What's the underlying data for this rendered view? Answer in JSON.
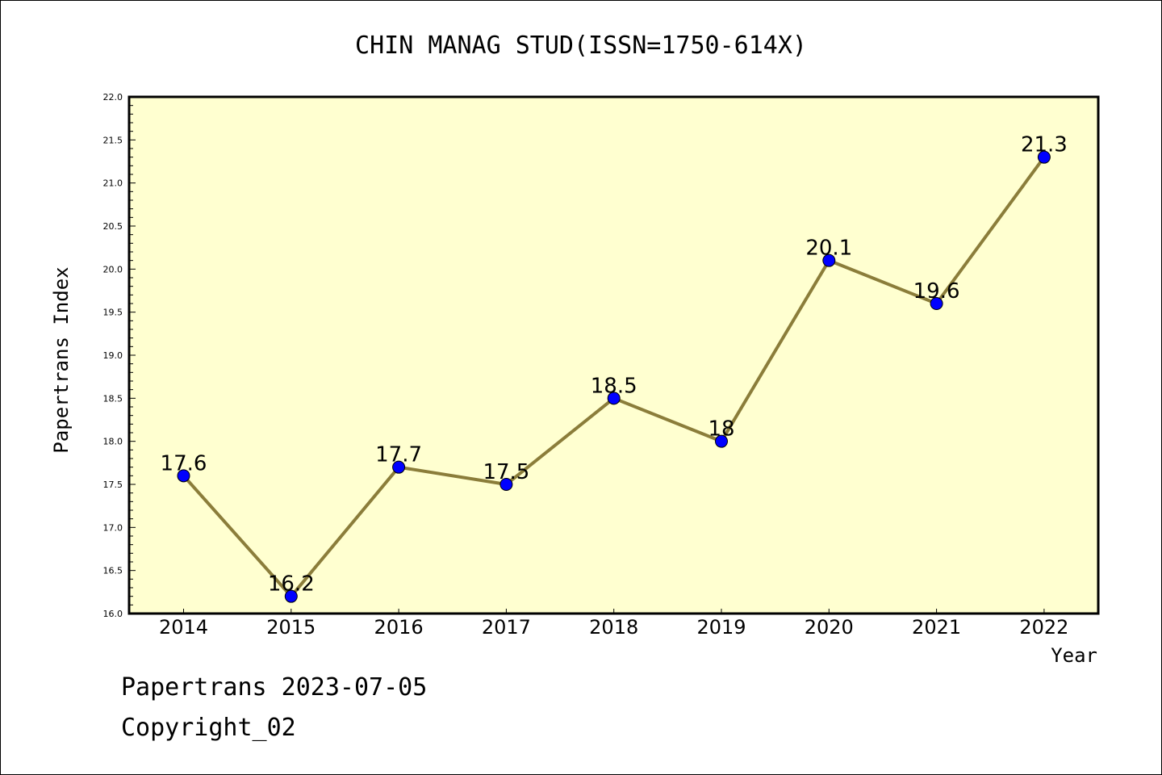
{
  "chart_data": {
    "type": "line",
    "title": "CHIN MANAG STUD(ISSN=1750-614X)",
    "xlabel": "Year",
    "ylabel": "Papertrans Index",
    "categories": [
      "2014",
      "2015",
      "2016",
      "2017",
      "2018",
      "2019",
      "2020",
      "2021",
      "2022"
    ],
    "values": [
      17.6,
      16.2,
      17.7,
      17.5,
      18.5,
      18,
      20.1,
      19.6,
      21.3
    ],
    "data_labels": [
      "17.6",
      "16.2",
      "17.7",
      "17.5",
      "18.5",
      "18",
      "20.1",
      "19.6",
      "21.3"
    ],
    "ylim": [
      16.0,
      22.0
    ],
    "yticks": [
      "16.0",
      "16.5",
      "17.0",
      "17.5",
      "18.0",
      "18.5",
      "19.0",
      "19.5",
      "20.0",
      "20.5",
      "21.0",
      "21.5",
      "22.0"
    ],
    "grid": false,
    "colors": {
      "plot_background": "#ffffd0",
      "line": "#8b7d3a",
      "marker": "#0000ff"
    }
  },
  "footer": {
    "line1": "Papertrans 2023-07-05",
    "line2": "Copyright_02"
  }
}
